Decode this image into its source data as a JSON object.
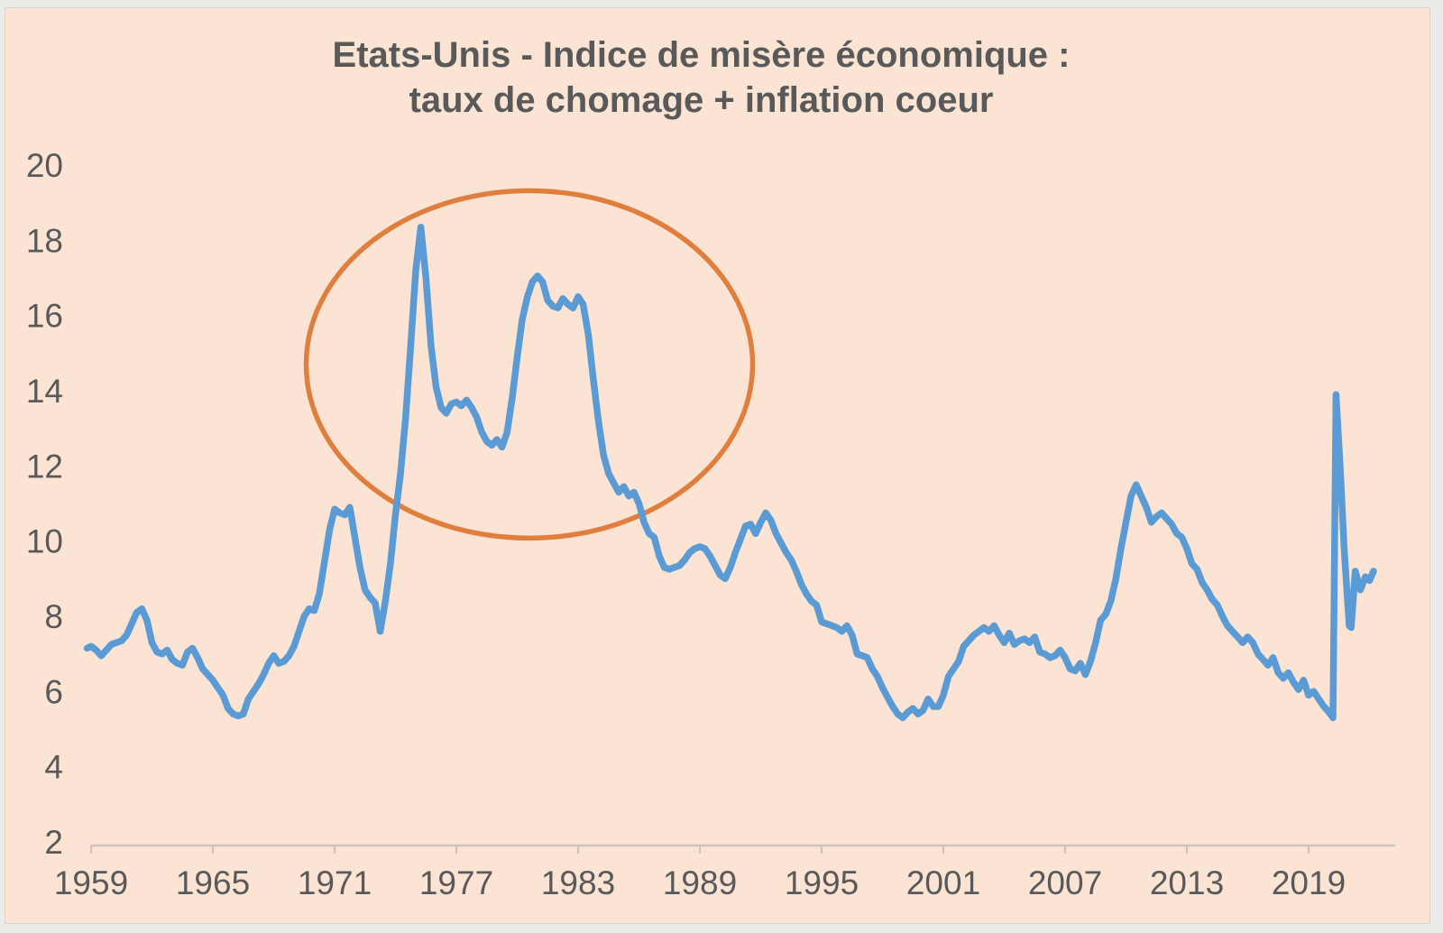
{
  "title": {
    "line1": "Etats-Unis - Indice de misère économique :",
    "line2": "taux de chomage + inflation coeur"
  },
  "colors": {
    "slide_background": "#fbe4d4",
    "outer_background": "#edebe8",
    "line": "#5b9bd5",
    "ellipse": "#e07e3d",
    "text": "#595959",
    "axis": "#c9c3bd"
  },
  "chart_data": {
    "type": "line",
    "title": "Etats-Unis - Indice de misère économique : taux de chomage + inflation coeur",
    "xlabel": "",
    "ylabel": "",
    "grid": false,
    "legend": null,
    "ylim": [
      2,
      20
    ],
    "xlim": [
      1958.8,
      2023.3
    ],
    "y_ticks": [
      2,
      4,
      6,
      8,
      10,
      12,
      14,
      16,
      18,
      20
    ],
    "x_ticks": [
      1959,
      1965,
      1971,
      1977,
      1983,
      1989,
      1995,
      2001,
      2007,
      2013,
      2019
    ],
    "annotation": {
      "shape": "ellipse",
      "meaning": "highlight of 1970s-early 1980s stagflation double peak",
      "center_year": 1980.6,
      "center_value": 14.7,
      "radius_years": 11.0,
      "radius_value": 4.62,
      "color": "#e07e3d"
    },
    "series": [
      {
        "name": "Indice de misère (taux de chomage + inflation coeur)",
        "color": "#5b9bd5",
        "points": [
          [
            1958.8,
            7.15
          ],
          [
            1959,
            7.2
          ],
          [
            1959.25,
            7.1
          ],
          [
            1959.5,
            6.95
          ],
          [
            1959.75,
            7.1
          ],
          [
            1960,
            7.25
          ],
          [
            1960.25,
            7.3
          ],
          [
            1960.5,
            7.35
          ],
          [
            1960.75,
            7.5
          ],
          [
            1961,
            7.8
          ],
          [
            1961.25,
            8.1
          ],
          [
            1961.5,
            8.2
          ],
          [
            1961.75,
            7.9
          ],
          [
            1962,
            7.3
          ],
          [
            1962.25,
            7.05
          ],
          [
            1962.5,
            7
          ],
          [
            1962.75,
            7.1
          ],
          [
            1963,
            6.85
          ],
          [
            1963.25,
            6.75
          ],
          [
            1963.5,
            6.7
          ],
          [
            1963.75,
            7.05
          ],
          [
            1964,
            7.15
          ],
          [
            1964.25,
            6.9
          ],
          [
            1964.5,
            6.6
          ],
          [
            1964.75,
            6.45
          ],
          [
            1965,
            6.3
          ],
          [
            1965.25,
            6.1
          ],
          [
            1965.5,
            5.9
          ],
          [
            1965.75,
            5.55
          ],
          [
            1966,
            5.4
          ],
          [
            1966.25,
            5.35
          ],
          [
            1966.5,
            5.4
          ],
          [
            1966.75,
            5.8
          ],
          [
            1967,
            6
          ],
          [
            1967.25,
            6.2
          ],
          [
            1967.5,
            6.45
          ],
          [
            1967.75,
            6.75
          ],
          [
            1968,
            6.95
          ],
          [
            1968.25,
            6.75
          ],
          [
            1968.5,
            6.8
          ],
          [
            1968.75,
            6.95
          ],
          [
            1969,
            7.2
          ],
          [
            1969.25,
            7.6
          ],
          [
            1969.5,
            8
          ],
          [
            1969.75,
            8.2
          ],
          [
            1970,
            8.15
          ],
          [
            1970.25,
            8.6
          ],
          [
            1970.5,
            9.45
          ],
          [
            1970.75,
            10.3
          ],
          [
            1971,
            10.85
          ],
          [
            1971.25,
            10.75
          ],
          [
            1971.5,
            10.7
          ],
          [
            1971.75,
            10.9
          ],
          [
            1972,
            10.1
          ],
          [
            1972.25,
            9.3
          ],
          [
            1972.5,
            8.7
          ],
          [
            1972.75,
            8.5
          ],
          [
            1973,
            8.35
          ],
          [
            1973.25,
            7.6
          ],
          [
            1973.5,
            8.4
          ],
          [
            1973.75,
            9.4
          ],
          [
            1974,
            10.7
          ],
          [
            1974.25,
            11.8
          ],
          [
            1974.5,
            13.3
          ],
          [
            1974.75,
            15.2
          ],
          [
            1975,
            17.2
          ],
          [
            1975.25,
            18.35
          ],
          [
            1975.5,
            17
          ],
          [
            1975.75,
            15.2
          ],
          [
            1976,
            14.1
          ],
          [
            1976.25,
            13.55
          ],
          [
            1976.5,
            13.4
          ],
          [
            1976.75,
            13.65
          ],
          [
            1977,
            13.7
          ],
          [
            1977.25,
            13.6
          ],
          [
            1977.5,
            13.75
          ],
          [
            1977.75,
            13.55
          ],
          [
            1978,
            13.3
          ],
          [
            1978.25,
            12.9
          ],
          [
            1978.5,
            12.65
          ],
          [
            1978.75,
            12.55
          ],
          [
            1979,
            12.7
          ],
          [
            1979.25,
            12.5
          ],
          [
            1979.5,
            12.9
          ],
          [
            1979.75,
            13.8
          ],
          [
            1980,
            14.9
          ],
          [
            1980.25,
            15.9
          ],
          [
            1980.5,
            16.5
          ],
          [
            1980.75,
            16.9
          ],
          [
            1981,
            17.05
          ],
          [
            1981.25,
            16.9
          ],
          [
            1981.5,
            16.4
          ],
          [
            1981.75,
            16.25
          ],
          [
            1982,
            16.2
          ],
          [
            1982.25,
            16.45
          ],
          [
            1982.5,
            16.3
          ],
          [
            1982.75,
            16.2
          ],
          [
            1983,
            16.5
          ],
          [
            1983.25,
            16.3
          ],
          [
            1983.5,
            15.5
          ],
          [
            1983.75,
            14.3
          ],
          [
            1984,
            13.2
          ],
          [
            1984.25,
            12.3
          ],
          [
            1984.5,
            11.8
          ],
          [
            1984.75,
            11.55
          ],
          [
            1985,
            11.3
          ],
          [
            1985.25,
            11.45
          ],
          [
            1985.5,
            11.2
          ],
          [
            1985.75,
            11.3
          ],
          [
            1986,
            11
          ],
          [
            1986.25,
            10.5
          ],
          [
            1986.5,
            10.2
          ],
          [
            1986.75,
            10.1
          ],
          [
            1987,
            9.6
          ],
          [
            1987.25,
            9.3
          ],
          [
            1987.5,
            9.25
          ],
          [
            1987.75,
            9.3
          ],
          [
            1988,
            9.35
          ],
          [
            1988.25,
            9.5
          ],
          [
            1988.5,
            9.7
          ],
          [
            1988.75,
            9.8
          ],
          [
            1989,
            9.85
          ],
          [
            1989.25,
            9.8
          ],
          [
            1989.5,
            9.6
          ],
          [
            1989.75,
            9.35
          ],
          [
            1990,
            9.1
          ],
          [
            1990.25,
            9
          ],
          [
            1990.5,
            9.3
          ],
          [
            1990.75,
            9.7
          ],
          [
            1991,
            10.05
          ],
          [
            1991.25,
            10.4
          ],
          [
            1991.5,
            10.45
          ],
          [
            1991.75,
            10.2
          ],
          [
            1992,
            10.5
          ],
          [
            1992.25,
            10.75
          ],
          [
            1992.5,
            10.55
          ],
          [
            1992.75,
            10.2
          ],
          [
            1993,
            9.95
          ],
          [
            1993.25,
            9.7
          ],
          [
            1993.5,
            9.5
          ],
          [
            1993.75,
            9.2
          ],
          [
            1994,
            8.85
          ],
          [
            1994.25,
            8.6
          ],
          [
            1994.5,
            8.4
          ],
          [
            1994.75,
            8.3
          ],
          [
            1995,
            7.85
          ],
          [
            1995.25,
            7.8
          ],
          [
            1995.5,
            7.75
          ],
          [
            1995.75,
            7.7
          ],
          [
            1996,
            7.6
          ],
          [
            1996.25,
            7.75
          ],
          [
            1996.5,
            7.5
          ],
          [
            1996.75,
            7
          ],
          [
            1997,
            6.95
          ],
          [
            1997.25,
            6.9
          ],
          [
            1997.5,
            6.6
          ],
          [
            1997.75,
            6.4
          ],
          [
            1998,
            6.1
          ],
          [
            1998.25,
            5.85
          ],
          [
            1998.5,
            5.6
          ],
          [
            1998.75,
            5.4
          ],
          [
            1999,
            5.3
          ],
          [
            1999.25,
            5.45
          ],
          [
            1999.5,
            5.55
          ],
          [
            1999.75,
            5.4
          ],
          [
            2000,
            5.5
          ],
          [
            2000.25,
            5.8
          ],
          [
            2000.5,
            5.6
          ],
          [
            2000.75,
            5.6
          ],
          [
            2001,
            5.9
          ],
          [
            2001.25,
            6.4
          ],
          [
            2001.5,
            6.6
          ],
          [
            2001.75,
            6.8
          ],
          [
            2002,
            7.2
          ],
          [
            2002.25,
            7.35
          ],
          [
            2002.5,
            7.5
          ],
          [
            2002.75,
            7.6
          ],
          [
            2003,
            7.7
          ],
          [
            2003.25,
            7.6
          ],
          [
            2003.5,
            7.75
          ],
          [
            2003.75,
            7.5
          ],
          [
            2004,
            7.3
          ],
          [
            2004.25,
            7.55
          ],
          [
            2004.5,
            7.25
          ],
          [
            2004.75,
            7.35
          ],
          [
            2005,
            7.4
          ],
          [
            2005.25,
            7.3
          ],
          [
            2005.5,
            7.45
          ],
          [
            2005.75,
            7.05
          ],
          [
            2006,
            7
          ],
          [
            2006.25,
            6.9
          ],
          [
            2006.5,
            6.95
          ],
          [
            2006.75,
            7.1
          ],
          [
            2007,
            6.9
          ],
          [
            2007.25,
            6.6
          ],
          [
            2007.5,
            6.55
          ],
          [
            2007.75,
            6.75
          ],
          [
            2008,
            6.45
          ],
          [
            2008.25,
            6.8
          ],
          [
            2008.5,
            7.3
          ],
          [
            2008.75,
            7.9
          ],
          [
            2009,
            8.05
          ],
          [
            2009.25,
            8.4
          ],
          [
            2009.5,
            9
          ],
          [
            2009.75,
            9.8
          ],
          [
            2010,
            10.5
          ],
          [
            2010.25,
            11.2
          ],
          [
            2010.5,
            11.5
          ],
          [
            2010.75,
            11.2
          ],
          [
            2011,
            10.9
          ],
          [
            2011.25,
            10.5
          ],
          [
            2011.5,
            10.65
          ],
          [
            2011.75,
            10.75
          ],
          [
            2012,
            10.6
          ],
          [
            2012.25,
            10.45
          ],
          [
            2012.5,
            10.2
          ],
          [
            2012.75,
            10.1
          ],
          [
            2013,
            9.8
          ],
          [
            2013.25,
            9.4
          ],
          [
            2013.5,
            9.25
          ],
          [
            2013.75,
            8.9
          ],
          [
            2014,
            8.7
          ],
          [
            2014.25,
            8.45
          ],
          [
            2014.5,
            8.3
          ],
          [
            2014.75,
            8
          ],
          [
            2015,
            7.75
          ],
          [
            2015.25,
            7.6
          ],
          [
            2015.5,
            7.45
          ],
          [
            2015.75,
            7.3
          ],
          [
            2016,
            7.45
          ],
          [
            2016.25,
            7.3
          ],
          [
            2016.5,
            7
          ],
          [
            2016.75,
            6.85
          ],
          [
            2017,
            6.7
          ],
          [
            2017.25,
            6.9
          ],
          [
            2017.5,
            6.5
          ],
          [
            2017.75,
            6.35
          ],
          [
            2018,
            6.5
          ],
          [
            2018.25,
            6.25
          ],
          [
            2018.5,
            6.05
          ],
          [
            2018.75,
            6.3
          ],
          [
            2019,
            5.9
          ],
          [
            2019.25,
            6
          ],
          [
            2019.5,
            5.8
          ],
          [
            2019.75,
            5.6
          ],
          [
            2020,
            5.45
          ],
          [
            2020.2,
            5.3
          ],
          [
            2020.35,
            13.9
          ],
          [
            2020.55,
            12
          ],
          [
            2020.75,
            9.8
          ],
          [
            2021,
            7.75
          ],
          [
            2021.1,
            7.7
          ],
          [
            2021.3,
            9.2
          ],
          [
            2021.55,
            8.7
          ],
          [
            2021.8,
            9.05
          ],
          [
            2022,
            8.95
          ],
          [
            2022.2,
            9.2
          ]
        ]
      }
    ]
  }
}
